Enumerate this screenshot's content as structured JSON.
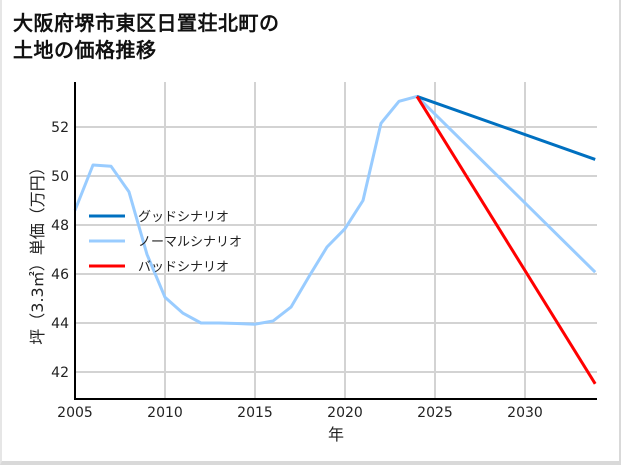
{
  "title": {
    "line1": "大阪府堺市東区日置荘北町の",
    "line2": "土地の価格推移"
  },
  "axes": {
    "xlabel": "年",
    "ylabel": "坪（3.3㎡）単価（万円）",
    "xticks": [
      "2005",
      "2010",
      "2015",
      "2020",
      "2025",
      "2030"
    ],
    "yticks": [
      "52",
      "50",
      "48",
      "46",
      "44",
      "42"
    ]
  },
  "legend": {
    "items": [
      {
        "label": "グッドシナリオ",
        "color": "#0070c0"
      },
      {
        "label": "ノーマルシナリオ",
        "color": "#99ccff"
      },
      {
        "label": "バッドシナリオ",
        "color": "#ff0000"
      }
    ]
  },
  "chart_data": {
    "type": "line",
    "title": "大阪府堺市東区日置荘北町の土地の価格推移",
    "xlabel": "年",
    "ylabel": "坪（3.3㎡）単価（万円）",
    "xlim": [
      2005,
      2034
    ],
    "ylim": [
      41,
      53.8
    ],
    "grid": true,
    "legend_position": "center-left",
    "series": [
      {
        "name": "グッドシナリオ",
        "color": "#0070c0",
        "x": [
          2024,
          2034
        ],
        "values": [
          53.25,
          50.65
        ]
      },
      {
        "name": "ノーマルシナリオ",
        "color": "#99ccff",
        "x": [
          2005,
          2006,
          2007,
          2008,
          2009,
          2010,
          2011,
          2012,
          2013,
          2014,
          2015,
          2016,
          2017,
          2018,
          2019,
          2020,
          2021,
          2022,
          2023,
          2024,
          2034
        ],
        "values": [
          48.6,
          50.45,
          50.4,
          49.35,
          46.8,
          45.05,
          44.4,
          44.0,
          44.0,
          43.98,
          43.95,
          44.08,
          44.65,
          45.9,
          47.1,
          47.85,
          49.0,
          52.15,
          53.05,
          53.25,
          46.0
        ]
      },
      {
        "name": "バッドシナリオ",
        "color": "#ff0000",
        "x": [
          2024,
          2034
        ],
        "values": [
          53.25,
          41.4
        ]
      }
    ]
  }
}
